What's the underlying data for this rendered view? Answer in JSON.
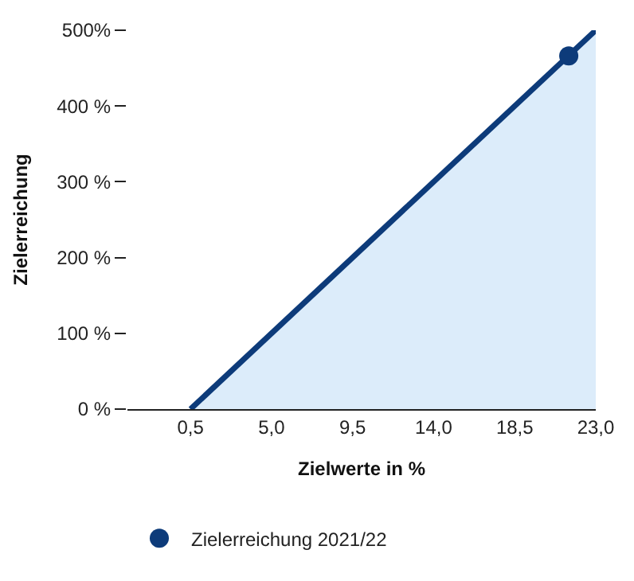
{
  "chart_data": {
    "type": "area",
    "xlabel": "Zielwerte in %",
    "ylabel": "Zielerreichung",
    "x": [
      0.5,
      23.0
    ],
    "series": [
      {
        "color": "#0d3b7a",
        "values": [
          0,
          500
        ]
      },
      {
        "type": "scatter",
        "name": "Zielerreichung 2021/22",
        "color": "#0d3b7a",
        "x": [
          21.5
        ],
        "values": [
          466
        ],
        "marker": "circle"
      }
    ],
    "xlim": [
      -3,
      23.0
    ],
    "ylim": [
      0,
      500
    ],
    "xticks": [
      {
        "value": 0.5,
        "label": "0,5"
      },
      {
        "value": 5.0,
        "label": "5,0"
      },
      {
        "value": 9.5,
        "label": "9,5"
      },
      {
        "value": 14.0,
        "label": "14,0"
      },
      {
        "value": 18.5,
        "label": "18,5"
      },
      {
        "value": 23.0,
        "label": "23,0"
      }
    ],
    "yticks": [
      {
        "value": 0,
        "label": "0 %"
      },
      {
        "value": 100,
        "label": "100 %"
      },
      {
        "value": 200,
        "label": "200 %"
      },
      {
        "value": 300,
        "label": "300 %"
      },
      {
        "value": 400,
        "label": "400 %"
      },
      {
        "value": 500,
        "label": "500%"
      }
    ],
    "legend": "bottom"
  }
}
